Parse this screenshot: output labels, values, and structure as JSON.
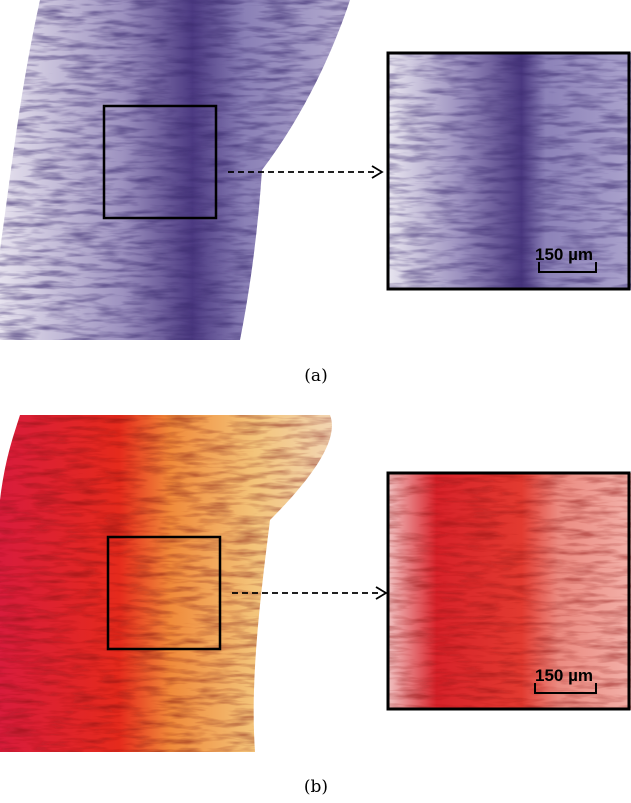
{
  "panels": [
    {
      "label": "(a)",
      "scale_bar": "150 µm"
    },
    {
      "label": "(b)",
      "scale_bar": "150 µm"
    }
  ]
}
